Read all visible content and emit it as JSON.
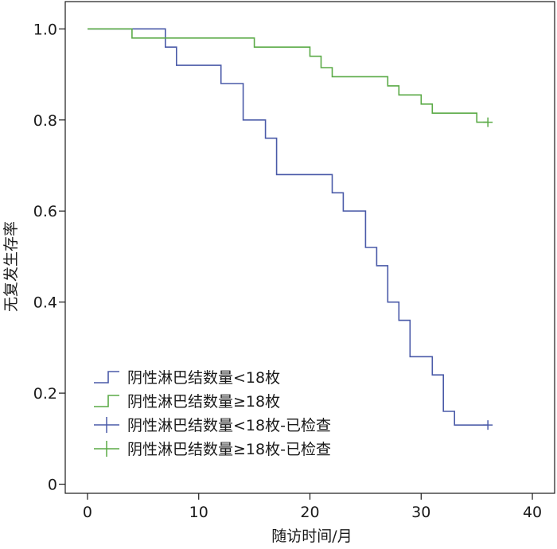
{
  "chart_data": {
    "type": "line",
    "step": true,
    "xlabel": "随访时间/月",
    "ylabel": "无复发生存率",
    "xlim": [
      -2,
      42
    ],
    "ylim": [
      -0.02,
      1.06
    ],
    "xticks": [
      0,
      10,
      20,
      30,
      40
    ],
    "xtick_labels": [
      "0",
      "10",
      "20",
      "30",
      "40"
    ],
    "yticks": [
      0,
      0.2,
      0.4,
      0.6,
      0.8,
      1.0
    ],
    "ytick_labels": [
      "0",
      "0.2",
      "0.4",
      "0.6",
      "0.8",
      "1.0"
    ],
    "grid": false,
    "legend_position": "bottom-left",
    "series": [
      {
        "name": "阴性淋巴结数量<18枚",
        "censored_name": "阴性淋巴结数量<18枚-已检查",
        "color": "#4a5aa8",
        "x": [
          0,
          7,
          7,
          8,
          8,
          12,
          12,
          14,
          14,
          16,
          16,
          17,
          17,
          22,
          22,
          23,
          23,
          25,
          25,
          26,
          26,
          27,
          27,
          28,
          28,
          29,
          29,
          31,
          31,
          32,
          32,
          33,
          33,
          36
        ],
        "y": [
          1.0,
          1.0,
          0.96,
          0.96,
          0.92,
          0.92,
          0.88,
          0.88,
          0.8,
          0.8,
          0.76,
          0.76,
          0.68,
          0.68,
          0.64,
          0.64,
          0.6,
          0.6,
          0.52,
          0.52,
          0.48,
          0.48,
          0.4,
          0.4,
          0.36,
          0.36,
          0.28,
          0.28,
          0.24,
          0.24,
          0.16,
          0.16,
          0.13,
          0.13
        ],
        "censored": [
          {
            "x": 36,
            "y": 0.13
          }
        ]
      },
      {
        "name": "阴性淋巴结数量≥18枚",
        "censored_name": "阴性淋巴结数量≥18枚-已检查",
        "color": "#5aaa46",
        "x": [
          0,
          4,
          4,
          15,
          15,
          20,
          20,
          21,
          21,
          22,
          22,
          27,
          27,
          28,
          28,
          30,
          30,
          31,
          31,
          35,
          35,
          36
        ],
        "y": [
          1.0,
          1.0,
          0.98,
          0.98,
          0.96,
          0.96,
          0.94,
          0.94,
          0.915,
          0.915,
          0.895,
          0.895,
          0.875,
          0.875,
          0.855,
          0.855,
          0.835,
          0.835,
          0.815,
          0.815,
          0.795,
          0.795
        ],
        "censored": [
          {
            "x": 36,
            "y": 0.795
          }
        ]
      }
    ]
  }
}
